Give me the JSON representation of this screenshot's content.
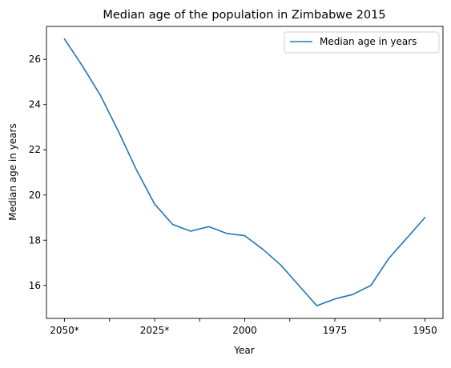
{
  "chart_data": {
    "type": "line",
    "title": "Median age of the population in Zimbabwe 2015",
    "xlabel": "Year",
    "ylabel": "Median age in years",
    "x_axis_reversed": true,
    "categories": [
      "2050*",
      "2045*",
      "2040*",
      "2035*",
      "2030*",
      "2025*",
      "2020*",
      "2015",
      "2010",
      "2005",
      "2000",
      "1995",
      "1990",
      "1985",
      "1980",
      "1975",
      "1970",
      "1965",
      "1960",
      "1955",
      "1950"
    ],
    "x_tick_labels": [
      "2050*",
      "",
      "2025*",
      "",
      "2000",
      "",
      "1975",
      "",
      "1950"
    ],
    "series": [
      {
        "name": "Median age in years",
        "color": "#1f77b4",
        "values": [
          26.9,
          25.7,
          24.4,
          22.8,
          21.1,
          19.6,
          18.7,
          18.4,
          18.6,
          18.3,
          18.2,
          17.6,
          16.9,
          16.0,
          15.1,
          15.4,
          15.6,
          16.0,
          17.2,
          18.1,
          19.0
        ]
      }
    ],
    "ylim": [
      14.54,
      27.46
    ],
    "y_ticks": [
      16,
      18,
      20,
      22,
      24,
      26
    ],
    "grid": false,
    "legend_position": "top-right"
  }
}
